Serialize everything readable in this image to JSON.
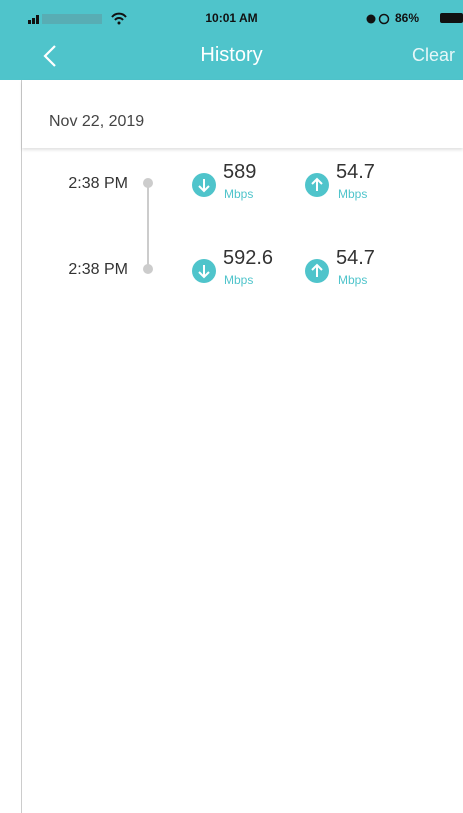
{
  "status": {
    "time": "10:01 AM",
    "battery": "86%"
  },
  "header": {
    "title": "History",
    "action": "Clear"
  },
  "date": "Nov 22, 2019",
  "entries": [
    {
      "time": "2:38 PM",
      "download": 589,
      "download_unit": "Mbps",
      "upload": 54.7,
      "upload_unit": "Mbps"
    },
    {
      "time": "2:38 PM",
      "download": 592.6,
      "download_unit": "Mbps",
      "upload": 54.7,
      "upload_unit": "Mbps"
    }
  ]
}
